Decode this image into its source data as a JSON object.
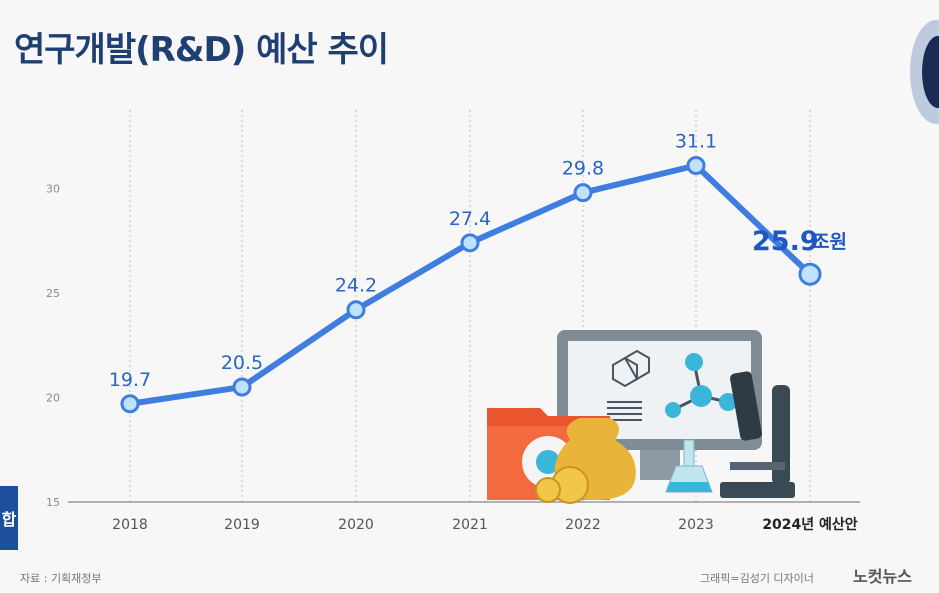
{
  "title": "연구개발(R&D) 예산 추이",
  "chart_data": {
    "type": "line",
    "categories": [
      "2018",
      "2019",
      "2020",
      "2021",
      "2022",
      "2023",
      "2024년 예산안"
    ],
    "values": [
      19.7,
      20.5,
      24.2,
      27.4,
      29.8,
      31.1,
      25.9
    ],
    "data_labels": [
      "19.7",
      "20.5",
      "24.2",
      "27.4",
      "29.8",
      "31.1",
      "25.9"
    ],
    "last_label_unit": "조원",
    "yticks": [
      15,
      20,
      25,
      30
    ],
    "ytick_labels": [
      "15",
      "20",
      "25",
      "30"
    ],
    "ylim": [
      15,
      32
    ],
    "grid": "vertical-dashed",
    "colors": {
      "line": "#3f7de0",
      "marker_fill": "#bfe3ff",
      "marker_stroke": "#3f7de0"
    }
  },
  "footer": {
    "source": "자료 : 기획재정부",
    "credit": "그래픽=김성기 디자이너",
    "brand": "노컷뉴스"
  },
  "left_badge": "합"
}
